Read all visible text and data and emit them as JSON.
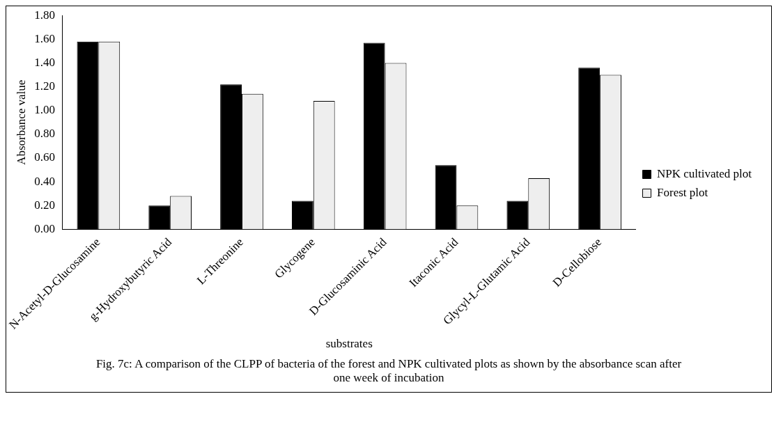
{
  "chart_data": {
    "type": "bar",
    "xlabel": "substrates",
    "ylabel": "Absorbance value",
    "categories": [
      "N-Acetyl-D-Glucosamine",
      "g-Hydroxybutyric Acid",
      "L-Threonine",
      "Glycogene",
      "D-Glucosaminic Acid",
      "Itaconic Acid",
      "Glycyl-L-Glutamic Acid",
      "D-Cellobiose"
    ],
    "series": [
      {
        "name": "NPK cultivated plot",
        "color": "#000000",
        "values": [
          1.58,
          0.2,
          1.22,
          0.24,
          1.57,
          0.54,
          0.24,
          1.36
        ]
      },
      {
        "name": "Forest plot",
        "color": "#eeeeee",
        "values": [
          1.58,
          0.28,
          1.14,
          1.08,
          1.4,
          0.2,
          0.43,
          1.3
        ]
      }
    ],
    "ylim": [
      0,
      1.8
    ],
    "yticks": [
      {
        "value": 0,
        "label": "0.00"
      },
      {
        "value": 0.2,
        "label": "0.20"
      },
      {
        "value": 0.4,
        "label": "0.40"
      },
      {
        "value": 0.6,
        "label": "0.60"
      },
      {
        "value": 0.8,
        "label": "0.80"
      },
      {
        "value": 1,
        "label": "1.00"
      },
      {
        "value": 1.2,
        "label": "1.20"
      },
      {
        "value": 1.4,
        "label": "1.40"
      },
      {
        "value": 1.6,
        "label": "1.60"
      },
      {
        "value": 1.8,
        "label": "1.80"
      }
    ],
    "grid": false,
    "legend": "right",
    "annotations": [
      "Fig. 7c: A comparison of the CLPP of bacteria of the forest and NPK cultivated plots as shown by the absorbance scan after one week of incubation"
    ]
  }
}
